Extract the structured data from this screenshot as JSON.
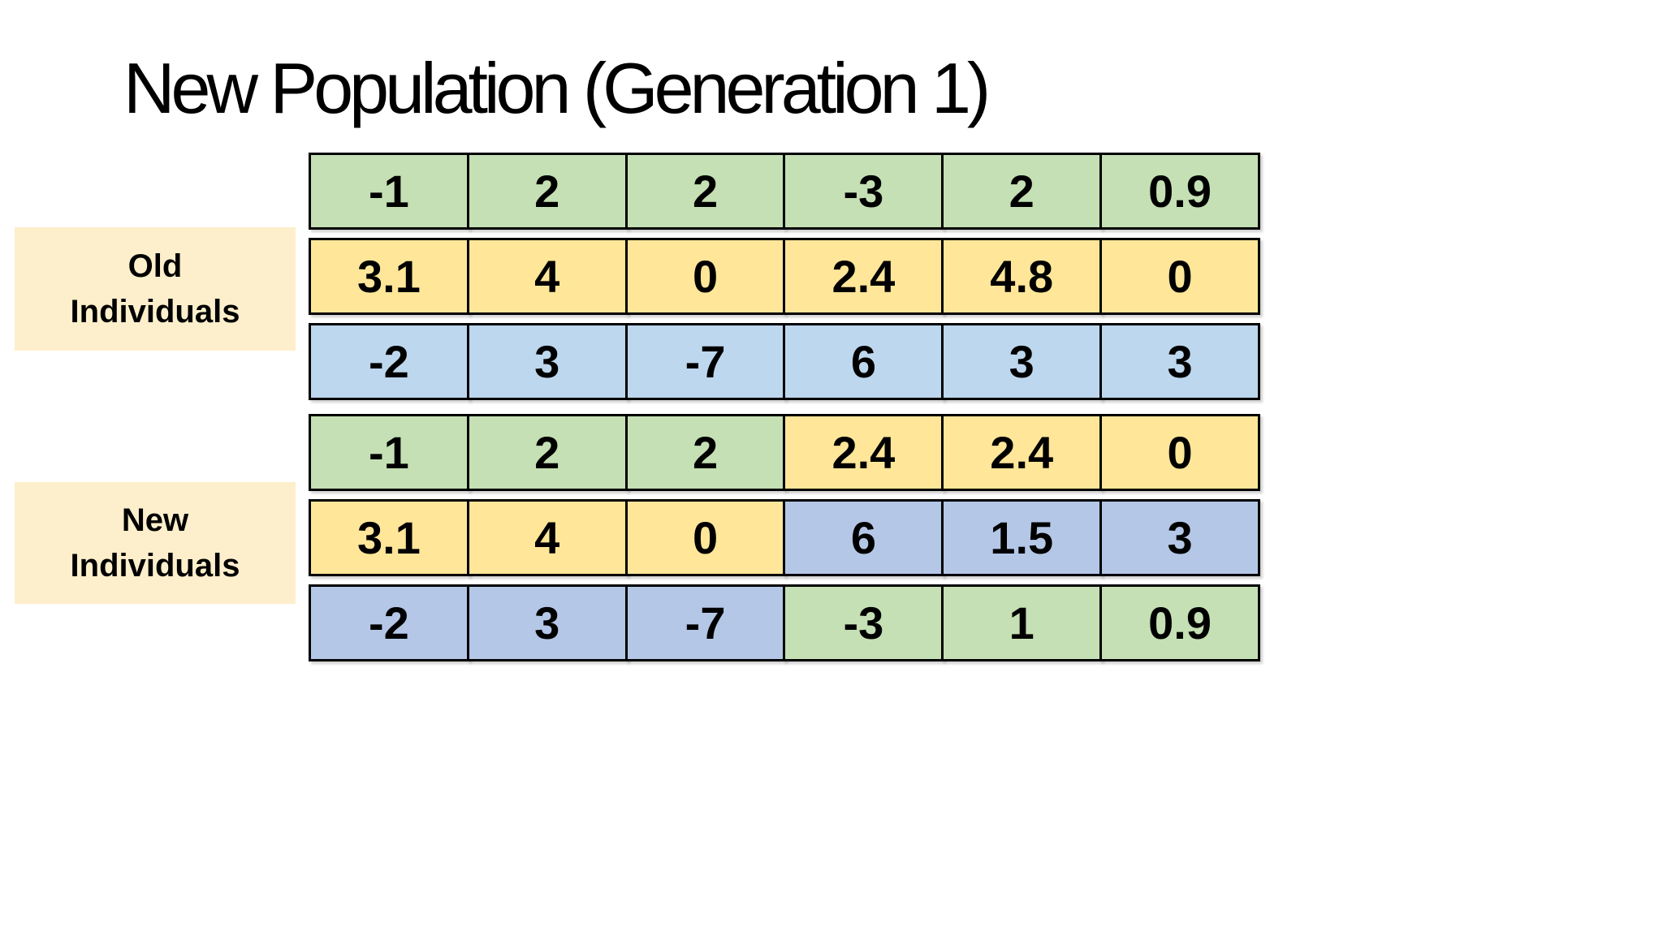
{
  "title": "New Population (Generation 1)",
  "colors": {
    "green": "#C5E0B4",
    "yellow": "#FFE699",
    "sky_blue": "#BDD7EE",
    "periwinkle": "#B4C7E7",
    "label_background": "#FDEFCB",
    "cell_border": "#000000",
    "text": "#000000",
    "slide_background": "#FFFFFF"
  },
  "groups": [
    {
      "label": "Old\nIndividuals",
      "rows": [
        {
          "cells": [
            {
              "value": "-1",
              "color": "green"
            },
            {
              "value": "2",
              "color": "green"
            },
            {
              "value": "2",
              "color": "green"
            },
            {
              "value": "-3",
              "color": "green"
            },
            {
              "value": "2",
              "color": "green"
            },
            {
              "value": "0.9",
              "color": "green"
            }
          ]
        },
        {
          "cells": [
            {
              "value": "3.1",
              "color": "yellow"
            },
            {
              "value": "4",
              "color": "yellow"
            },
            {
              "value": "0",
              "color": "yellow"
            },
            {
              "value": "2.4",
              "color": "yellow"
            },
            {
              "value": "4.8",
              "color": "yellow"
            },
            {
              "value": "0",
              "color": "yellow"
            }
          ]
        },
        {
          "cells": [
            {
              "value": "-2",
              "color": "sky_blue"
            },
            {
              "value": "3",
              "color": "sky_blue"
            },
            {
              "value": "-7",
              "color": "sky_blue"
            },
            {
              "value": "6",
              "color": "sky_blue"
            },
            {
              "value": "3",
              "color": "sky_blue"
            },
            {
              "value": "3",
              "color": "sky_blue"
            }
          ]
        }
      ]
    },
    {
      "label": "New\nIndividuals",
      "rows": [
        {
          "cells": [
            {
              "value": "-1",
              "color": "green"
            },
            {
              "value": "2",
              "color": "green"
            },
            {
              "value": "2",
              "color": "green"
            },
            {
              "value": "2.4",
              "color": "yellow"
            },
            {
              "value": "2.4",
              "color": "yellow"
            },
            {
              "value": "0",
              "color": "yellow"
            }
          ]
        },
        {
          "cells": [
            {
              "value": "3.1",
              "color": "yellow"
            },
            {
              "value": "4",
              "color": "yellow"
            },
            {
              "value": "0",
              "color": "yellow"
            },
            {
              "value": "6",
              "color": "periwinkle"
            },
            {
              "value": "1.5",
              "color": "periwinkle"
            },
            {
              "value": "3",
              "color": "periwinkle"
            }
          ]
        },
        {
          "cells": [
            {
              "value": "-2",
              "color": "periwinkle"
            },
            {
              "value": "3",
              "color": "periwinkle"
            },
            {
              "value": "-7",
              "color": "periwinkle"
            },
            {
              "value": "-3",
              "color": "green"
            },
            {
              "value": "1",
              "color": "green"
            },
            {
              "value": "0.9",
              "color": "green"
            }
          ]
        }
      ]
    }
  ]
}
